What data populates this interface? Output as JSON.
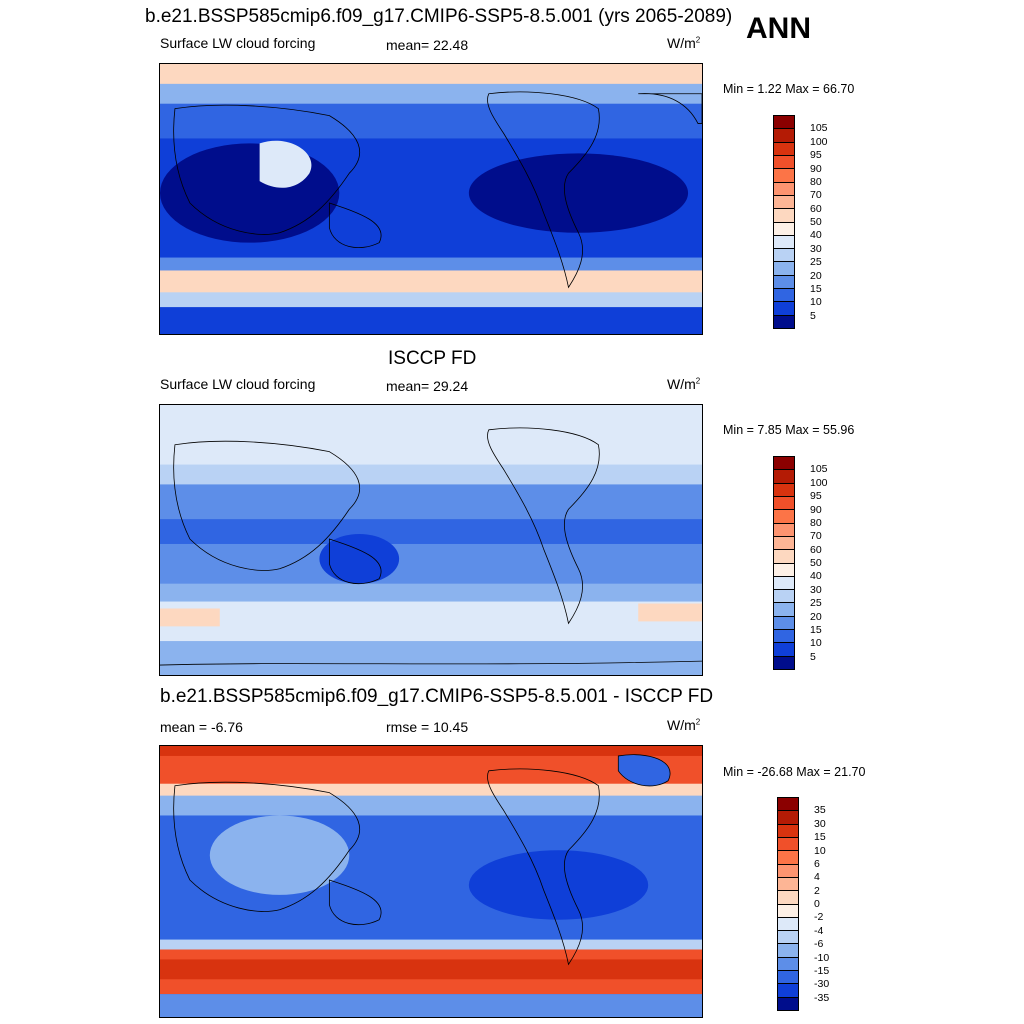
{
  "season": "ANN",
  "panels": [
    {
      "title": "b.e21.BSSP585cmip6.f09_g17.CMIP6-SSP5-8.5.001 (yrs 2065-2089)",
      "left_label": "Surface LW cloud forcing",
      "center_label": "mean=  22.48",
      "units": "W/m",
      "units_sup": "2",
      "minmax": "Min =   1.22 Max =  66.70",
      "colorbar_levels": [
        "105",
        "100",
        "95",
        "90",
        "80",
        "70",
        "60",
        "50",
        "40",
        "30",
        "25",
        "20",
        "15",
        "10",
        "5"
      ],
      "colorbar_colors": [
        "#8b0000",
        "#b41b05",
        "#d8330f",
        "#f0502a",
        "#fc7447",
        "#fd9470",
        "#fdb595",
        "#fdd8c0",
        "#fdf0e6",
        "#dde9f9",
        "#b9d2f4",
        "#8bb3ee",
        "#5d8ee8",
        "#3065e2",
        "#0f3fd8",
        "#000d8c"
      ]
    },
    {
      "title": "ISCCP FD",
      "left_label": "Surface LW cloud forcing",
      "center_label": "mean=  29.24",
      "units": "W/m",
      "units_sup": "2",
      "minmax": "Min =   7.85 Max =  55.96",
      "colorbar_levels": [
        "105",
        "100",
        "95",
        "90",
        "80",
        "70",
        "60",
        "50",
        "40",
        "30",
        "25",
        "20",
        "15",
        "10",
        "5"
      ],
      "colorbar_colors": [
        "#8b0000",
        "#b41b05",
        "#d8330f",
        "#f0502a",
        "#fc7447",
        "#fd9470",
        "#fdb595",
        "#fdd8c0",
        "#fdf0e6",
        "#dde9f9",
        "#b9d2f4",
        "#8bb3ee",
        "#5d8ee8",
        "#3065e2",
        "#0f3fd8",
        "#000d8c"
      ]
    },
    {
      "title": "b.e21.BSSP585cmip6.f09_g17.CMIP6-SSP5-8.5.001 - ISCCP FD",
      "left_label": "mean =  -6.76",
      "center_label": "rmse =  10.45",
      "units": "W/m",
      "units_sup": "2",
      "minmax": "Min = -26.68 Max =  21.70",
      "colorbar_levels": [
        "35",
        "30",
        "15",
        "10",
        "6",
        "4",
        "2",
        "0",
        "-2",
        "-4",
        "-6",
        "-10",
        "-15",
        "-30",
        "-35"
      ],
      "colorbar_colors": [
        "#8b0000",
        "#b41b05",
        "#d8330f",
        "#f0502a",
        "#fc7447",
        "#fd9470",
        "#fdb595",
        "#fdd8c0",
        "#fdf0e6",
        "#dde9f9",
        "#b9d2f4",
        "#8bb3ee",
        "#5d8ee8",
        "#3065e2",
        "#0f3fd8",
        "#000d8c"
      ]
    }
  ]
}
